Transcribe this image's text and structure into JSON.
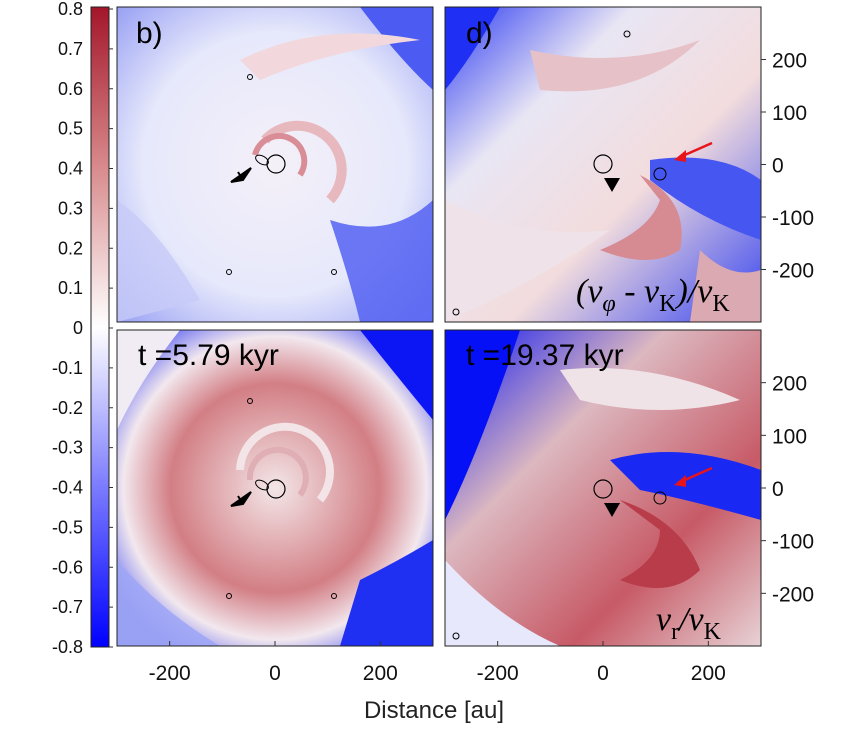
{
  "chart_data": {
    "type": "heatmap",
    "colormap": {
      "low_color": "#0000ff",
      "mid_color": "#ffffff",
      "high_color": "#b2182b",
      "range": [
        -0.8,
        0.8
      ],
      "ticks": [
        "0.8",
        "0.7",
        "0.6",
        "0.5",
        "0.4",
        "0.3",
        "0.2",
        "0.1",
        "0",
        "-0.1",
        "-0.2",
        "-0.3",
        "-0.4",
        "-0.5",
        "-0.6",
        "-0.7",
        "-0.8"
      ]
    },
    "xlabel": "Distance [au]",
    "xticks": [
      "-200",
      "0",
      "200"
    ],
    "yticks_right": [
      "200",
      "100",
      "0",
      "-100",
      "-200"
    ],
    "axis_range_au": [
      -300,
      300
    ],
    "panels": [
      {
        "id": "b",
        "label": "b)",
        "time": "",
        "quantity": "",
        "row": 0,
        "col": 0
      },
      {
        "id": "d",
        "label": "d)",
        "time": "",
        "quantity": "(v_φ - v_K)/v_K",
        "row": 0,
        "col": 1
      },
      {
        "id": "c",
        "label": "",
        "time": "t =5.79 kyr",
        "quantity": "",
        "row": 1,
        "col": 0
      },
      {
        "id": "e",
        "label": "",
        "time": "t =19.37 kyr",
        "quantity": "v_r/v_K",
        "row": 1,
        "col": 1
      }
    ],
    "arrow_colors": {
      "black": "#000000",
      "red": "#e8141b"
    }
  },
  "text": {
    "panel_b_label": "b)",
    "panel_d_label": "d)",
    "panel_c_time": "t =5.79 kyr",
    "panel_e_time": "t =19.37 kyr",
    "d_quantity_open": "(v",
    "d_quantity_phi": "φ",
    "d_quantity_mid": " - v",
    "d_quantity_k1": "K",
    "d_quantity_close": ")/v",
    "d_quantity_k2": "K",
    "e_quantity_v1": "v",
    "e_quantity_r": "r",
    "e_quantity_slash": "/v",
    "e_quantity_k": "K"
  }
}
